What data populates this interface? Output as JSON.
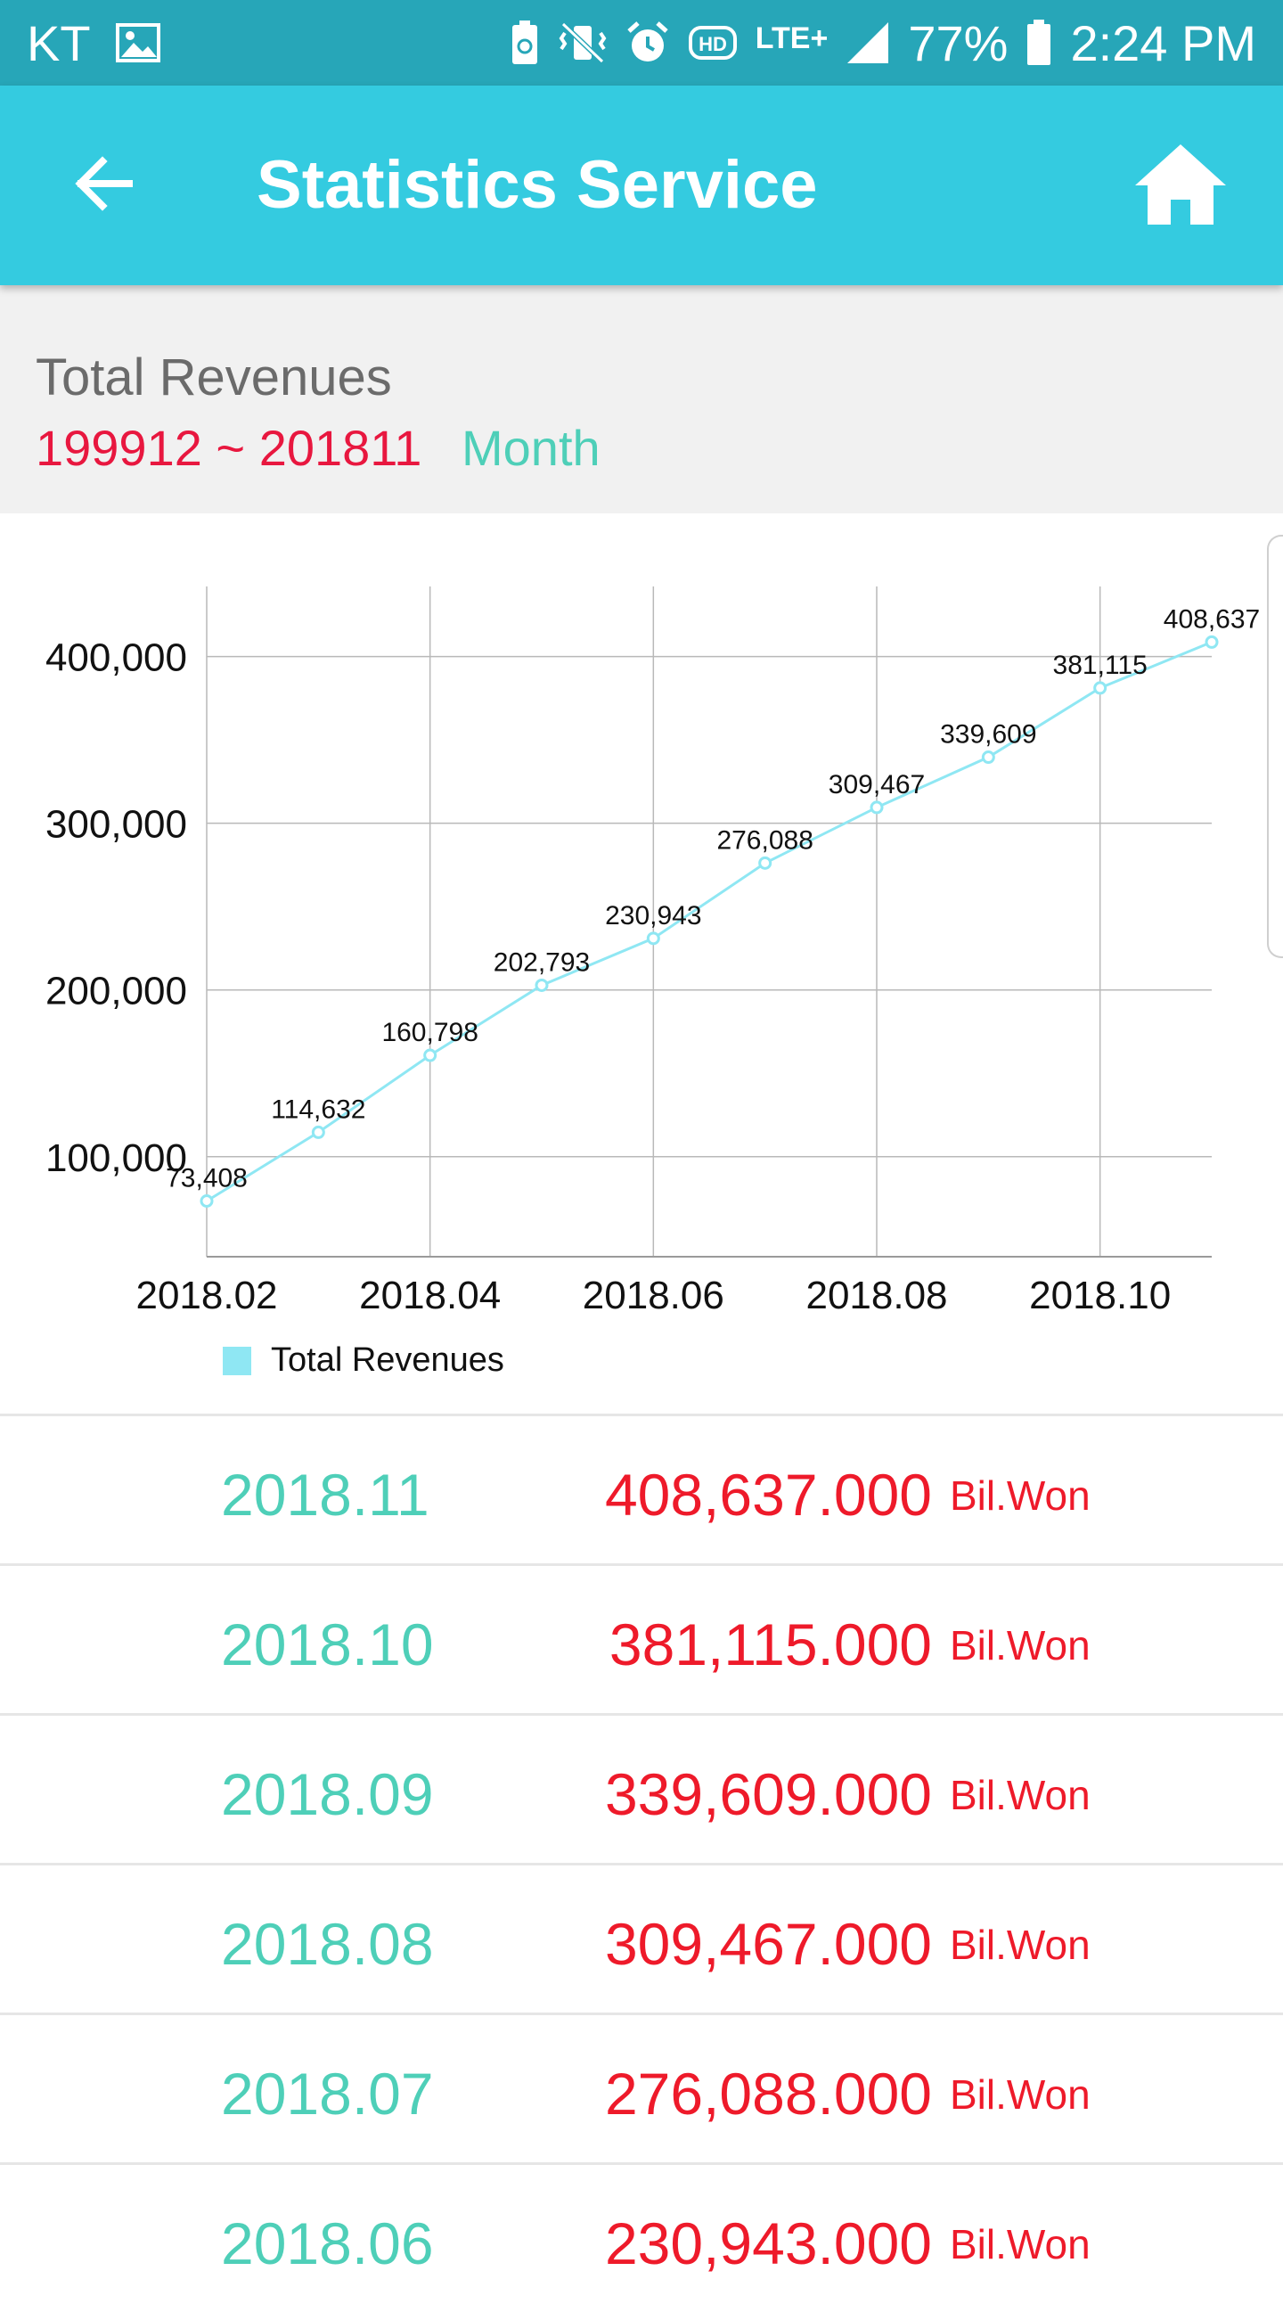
{
  "status_bar": {
    "carrier": "KT",
    "network": "LTE+",
    "battery": "77%",
    "time": "2:24 PM",
    "icons": [
      "image-icon",
      "battery-saver-icon",
      "vibrate-mute-icon",
      "alarm-icon",
      "hd-voice-icon",
      "lte-icon",
      "signal-icon",
      "battery-icon"
    ]
  },
  "app_bar": {
    "title": "Statistics Service",
    "back_icon": "arrow-left-icon",
    "home_icon": "home-icon"
  },
  "summary": {
    "title": "Total Revenues",
    "range": "199912 ~ 201811",
    "period": "Month"
  },
  "colors": {
    "status_bar": "#27a6b8",
    "app_bar": "#34cbe0",
    "range_text": "#e8173f",
    "teal_text": "#4ecfb8",
    "value_text": "#ee1a2a",
    "series": "#8fe7f3"
  },
  "chart_data": {
    "type": "line",
    "x": [
      "2018.02",
      "2018.03",
      "2018.04",
      "2018.05",
      "2018.06",
      "2018.07",
      "2018.08",
      "2018.09",
      "2018.10",
      "2018.11"
    ],
    "series": [
      {
        "name": "Total Revenues",
        "values": [
          73408,
          114632,
          160798,
          202793,
          230943,
          276088,
          309467,
          339609,
          381115,
          408637
        ]
      }
    ],
    "point_labels": [
      "73,408",
      "114,632",
      "160,798",
      "202,793",
      "230,943",
      "276,088",
      "309,467",
      "339,609",
      "381,115",
      "408,637"
    ],
    "x_tick_labels": [
      "2018.02",
      "2018.04",
      "2018.06",
      "2018.08",
      "2018.10"
    ],
    "y_ticks": [
      100000,
      200000,
      300000,
      400000
    ],
    "y_tick_labels": [
      "100,000",
      "200,000",
      "300,000",
      "400,000"
    ],
    "ylim": [
      40000,
      442000
    ],
    "grid": true,
    "legend": "bottom-left"
  },
  "legend": {
    "label": "Total Revenues"
  },
  "list": {
    "unit": "Bil.Won",
    "rows": [
      {
        "date": "2018.11",
        "value": "408,637.000"
      },
      {
        "date": "2018.10",
        "value": "381,115.000"
      },
      {
        "date": "2018.09",
        "value": "339,609.000"
      },
      {
        "date": "2018.08",
        "value": "309,467.000"
      },
      {
        "date": "2018.07",
        "value": "276,088.000"
      },
      {
        "date": "2018.06",
        "value": "230,943.000"
      }
    ]
  }
}
